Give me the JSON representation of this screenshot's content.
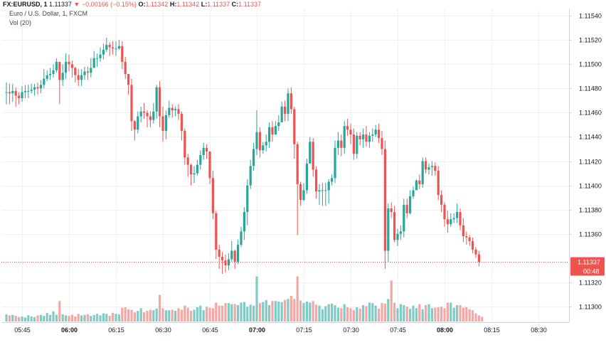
{
  "header": {
    "symbol": "FX:EURUSD, 1",
    "last": "1.11337",
    "arrow": "▼",
    "change": "−0.00166 (−0.15%)",
    "o_label": "O:",
    "o_value": "1.11342",
    "h_label": "H:",
    "h_value": "1.11342",
    "l_label": "L:",
    "l_value": "1.11337",
    "c_label": "C:",
    "c_value": "1.11337",
    "series_title": "Euro / U.S. Dollar, 1, FXCM",
    "volume_label": "Vol (20)"
  },
  "price_tag": {
    "price": "1.11337",
    "countdown": "00:48"
  },
  "colors": {
    "up": "#26a69a",
    "down": "#ef5350",
    "vol_up": "#80cbc4",
    "vol_down": "#f4a7a5",
    "grid": "#eef0f3"
  },
  "chart_data": {
    "type": "candlestick",
    "title": "Euro / U.S. Dollar, 1, FXCM",
    "xlabel": "",
    "ylabel": "",
    "yticks": [
      "1.11540",
      "1.11520",
      "1.11500",
      "1.11480",
      "1.11460",
      "1.11440",
      "1.11420",
      "1.11400",
      "1.11380",
      "1.11360",
      "1.11320",
      "1.11300"
    ],
    "ylim": [
      1.11287,
      1.11546
    ],
    "xticks": [
      "05:45",
      "06:00",
      "06:15",
      "06:30",
      "06:45",
      "07:00",
      "07:15",
      "07:30",
      "07:45",
      "08:00",
      "08:15",
      "08:30"
    ],
    "bold_xticks": [
      "06:00",
      "07:00",
      "08:00"
    ],
    "start_time": "05:40",
    "last_price": 1.11337,
    "closes": [
      1.11477,
      1.11476,
      1.11478,
      1.11474,
      1.11472,
      1.11477,
      1.11478,
      1.11478,
      1.11479,
      1.11481,
      1.1148,
      1.11483,
      1.11488,
      1.11491,
      1.11492,
      1.11495,
      1.11502,
      1.11487,
      1.11493,
      1.11502,
      1.115,
      1.11497,
      1.11491,
      1.11487,
      1.11491,
      1.11494,
      1.11493,
      1.11497,
      1.11505,
      1.11505,
      1.11508,
      1.11512,
      1.11516,
      1.11514,
      1.11513,
      1.11513,
      1.11515,
      1.11502,
      1.11492,
      1.11483,
      1.11453,
      1.11446,
      1.11457,
      1.11461,
      1.1146,
      1.11457,
      1.11454,
      1.11461,
      1.11481,
      1.11457,
      1.11445,
      1.11458,
      1.11464,
      1.11462,
      1.11463,
      1.11459,
      1.11445,
      1.11423,
      1.11417,
      1.11409,
      1.1141,
      1.11417,
      1.11425,
      1.11431,
      1.11428,
      1.11406,
      1.11377,
      1.11347,
      1.11341,
      1.11338,
      1.11334,
      1.11339,
      1.11346,
      1.11337,
      1.11351,
      1.11362,
      1.11378,
      1.114,
      1.11416,
      1.1143,
      1.11444,
      1.11429,
      1.11433,
      1.11436,
      1.11448,
      1.11442,
      1.11449,
      1.11452,
      1.11465,
      1.11459,
      1.11476,
      1.11463,
      1.11434,
      1.11401,
      1.11388,
      1.11396,
      1.11418,
      1.11436,
      1.11413,
      1.11395,
      1.11396,
      1.11396,
      1.11396,
      1.11403,
      1.11406,
      1.11431,
      1.11437,
      1.11431,
      1.11449,
      1.11446,
      1.11442,
      1.11426,
      1.11441,
      1.11438,
      1.11442,
      1.11436,
      1.11441,
      1.11442,
      1.11446,
      1.11439,
      1.1143,
      1.11346,
      1.11381,
      1.11378,
      1.11355,
      1.1136,
      1.11362,
      1.11384,
      1.11377,
      1.11391,
      1.11396,
      1.11404,
      1.11401,
      1.1142,
      1.11413,
      1.11415,
      1.11416,
      1.11412,
      1.11392,
      1.11384,
      1.11372,
      1.11368,
      1.11372,
      1.11373,
      1.11378,
      1.11367,
      1.11358,
      1.11357,
      1.11354,
      1.11347,
      1.11343,
      1.11337
    ],
    "wicks": [
      [
        1.11485,
        1.11467
      ],
      [
        1.11484,
        1.11467
      ],
      [
        1.11484,
        1.11469
      ],
      [
        1.11481,
        1.11465
      ],
      [
        1.11477,
        1.11467
      ],
      [
        1.11482,
        1.11469
      ],
      [
        1.11483,
        1.11472
      ],
      [
        1.11483,
        1.11472
      ],
      [
        1.11484,
        1.11476
      ],
      [
        1.11484,
        1.11474
      ],
      [
        1.11485,
        1.11475
      ],
      [
        1.11487,
        1.11476
      ],
      [
        1.11496,
        1.1148
      ],
      [
        1.11495,
        1.11486
      ],
      [
        1.11497,
        1.11487
      ],
      [
        1.115,
        1.11489
      ],
      [
        1.11505,
        1.11493
      ],
      [
        1.11501,
        1.11467
      ],
      [
        1.115,
        1.11482
      ],
      [
        1.11509,
        1.11488
      ],
      [
        1.11508,
        1.11494
      ],
      [
        1.11503,
        1.11489
      ],
      [
        1.11498,
        1.11485
      ],
      [
        1.11496,
        1.11482
      ],
      [
        1.11496,
        1.11482
      ],
      [
        1.11498,
        1.11487
      ],
      [
        1.11498,
        1.11487
      ],
      [
        1.11505,
        1.11489
      ],
      [
        1.11511,
        1.11498
      ],
      [
        1.11509,
        1.11498
      ],
      [
        1.11514,
        1.11502
      ],
      [
        1.11517,
        1.11504
      ],
      [
        1.11522,
        1.1151
      ],
      [
        1.11518,
        1.11507
      ],
      [
        1.11519,
        1.11508
      ],
      [
        1.11519,
        1.11507
      ],
      [
        1.1152,
        1.11512
      ],
      [
        1.11519,
        1.11496
      ],
      [
        1.11506,
        1.11488
      ],
      [
        1.1149,
        1.11475
      ],
      [
        1.11488,
        1.11445
      ],
      [
        1.11454,
        1.11437
      ],
      [
        1.11461,
        1.11443
      ],
      [
        1.11465,
        1.11452
      ],
      [
        1.11468,
        1.11455
      ],
      [
        1.11462,
        1.11448
      ],
      [
        1.11461,
        1.11448
      ],
      [
        1.11468,
        1.11451
      ],
      [
        1.11483,
        1.11455
      ],
      [
        1.11486,
        1.11448
      ],
      [
        1.11465,
        1.11436
      ],
      [
        1.11462,
        1.11438
      ],
      [
        1.1147,
        1.11456
      ],
      [
        1.11467,
        1.11456
      ],
      [
        1.11465,
        1.11457
      ],
      [
        1.11467,
        1.11454
      ],
      [
        1.11461,
        1.11437
      ],
      [
        1.11447,
        1.11417
      ],
      [
        1.11426,
        1.11407
      ],
      [
        1.11418,
        1.114
      ],
      [
        1.11416,
        1.11402
      ],
      [
        1.11421,
        1.11408
      ],
      [
        1.11429,
        1.11413
      ],
      [
        1.11435,
        1.11421
      ],
      [
        1.11434,
        1.11422
      ],
      [
        1.11428,
        1.11401
      ],
      [
        1.11412,
        1.11372
      ],
      [
        1.11379,
        1.11339
      ],
      [
        1.11351,
        1.11331
      ],
      [
        1.11345,
        1.11327
      ],
      [
        1.11343,
        1.11328
      ],
      [
        1.11344,
        1.1133
      ],
      [
        1.11354,
        1.11337
      ],
      [
        1.11347,
        1.11331
      ],
      [
        1.11355,
        1.11335
      ],
      [
        1.11366,
        1.11349
      ],
      [
        1.11382,
        1.11355
      ],
      [
        1.11405,
        1.11367
      ],
      [
        1.11421,
        1.11397
      ],
      [
        1.11435,
        1.11412
      ],
      [
        1.11462,
        1.11425
      ],
      [
        1.11448,
        1.11423
      ],
      [
        1.11436,
        1.11426
      ],
      [
        1.11442,
        1.11428
      ],
      [
        1.11452,
        1.11431
      ],
      [
        1.11453,
        1.11436
      ],
      [
        1.11453,
        1.11442
      ],
      [
        1.11458,
        1.11445
      ],
      [
        1.11469,
        1.11454
      ],
      [
        1.1147,
        1.11453
      ],
      [
        1.1148,
        1.11453
      ],
      [
        1.11481,
        1.11459
      ],
      [
        1.11465,
        1.11422
      ],
      [
        1.11436,
        1.11359
      ],
      [
        1.11403,
        1.11383
      ],
      [
        1.11402,
        1.11387
      ],
      [
        1.11422,
        1.11393
      ],
      [
        1.1144,
        1.11423
      ],
      [
        1.11439,
        1.11407
      ],
      [
        1.11416,
        1.11389
      ],
      [
        1.11401,
        1.11384
      ],
      [
        1.11402,
        1.11383
      ],
      [
        1.11402,
        1.11383
      ],
      [
        1.11405,
        1.11385
      ],
      [
        1.11409,
        1.114
      ],
      [
        1.11437,
        1.11402
      ],
      [
        1.11444,
        1.11425
      ],
      [
        1.11442,
        1.11424
      ],
      [
        1.11453,
        1.11426
      ],
      [
        1.11455,
        1.11441
      ],
      [
        1.11451,
        1.11434
      ],
      [
        1.11447,
        1.11421
      ],
      [
        1.11444,
        1.11422
      ],
      [
        1.11444,
        1.11433
      ],
      [
        1.11447,
        1.11431
      ],
      [
        1.11449,
        1.11432
      ],
      [
        1.11444,
        1.11431
      ],
      [
        1.11447,
        1.11436
      ],
      [
        1.1145,
        1.1144
      ],
      [
        1.11451,
        1.11435
      ],
      [
        1.11445,
        1.11425
      ],
      [
        1.11437,
        1.11331
      ],
      [
        1.11385,
        1.11337
      ],
      [
        1.11386,
        1.11373
      ],
      [
        1.11383,
        1.11353
      ],
      [
        1.11364,
        1.1135
      ],
      [
        1.11367,
        1.11355
      ],
      [
        1.11389,
        1.11357
      ],
      [
        1.11389,
        1.11373
      ],
      [
        1.11396,
        1.11376
      ],
      [
        1.11399,
        1.11389
      ],
      [
        1.11405,
        1.11397
      ],
      [
        1.11409,
        1.11397
      ],
      [
        1.11423,
        1.11398
      ],
      [
        1.11423,
        1.1141
      ],
      [
        1.11418,
        1.11409
      ],
      [
        1.1142,
        1.11408
      ],
      [
        1.11419,
        1.11408
      ],
      [
        1.11416,
        1.11388
      ],
      [
        1.11396,
        1.11378
      ],
      [
        1.11386,
        1.11366
      ],
      [
        1.11379,
        1.11361
      ],
      [
        1.11377,
        1.11366
      ],
      [
        1.11377,
        1.11369
      ],
      [
        1.11385,
        1.11369
      ],
      [
        1.11381,
        1.11363
      ],
      [
        1.11373,
        1.11353
      ],
      [
        1.11362,
        1.11351
      ],
      [
        1.11359,
        1.1135
      ],
      [
        1.11357,
        1.11344
      ],
      [
        1.11349,
        1.1134
      ],
      [
        1.11346,
        1.11333
      ]
    ],
    "volume": [
      14,
      12,
      13,
      11,
      9,
      10,
      8,
      12,
      10,
      9,
      12,
      13,
      11,
      17,
      13,
      20,
      13,
      40,
      14,
      12,
      11,
      13,
      10,
      15,
      12,
      13,
      14,
      11,
      13,
      15,
      12,
      16,
      15,
      11,
      17,
      15,
      14,
      27,
      28,
      24,
      23,
      18,
      21,
      26,
      18,
      21,
      23,
      22,
      25,
      52,
      26,
      22,
      22,
      23,
      21,
      26,
      23,
      31,
      27,
      21,
      23,
      28,
      31,
      22,
      29,
      27,
      26,
      37,
      31,
      31,
      36,
      36,
      34,
      34,
      32,
      37,
      38,
      29,
      33,
      31,
      88,
      36,
      38,
      42,
      32,
      40,
      40,
      39,
      38,
      42,
      44,
      50,
      44,
      88,
      41,
      36,
      39,
      37,
      40,
      33,
      31,
      24,
      30,
      34,
      35,
      32,
      27,
      26,
      34,
      28,
      26,
      22,
      28,
      25,
      32,
      30,
      37,
      36,
      31,
      25,
      36,
      35,
      44,
      80,
      37,
      26,
      34,
      32,
      29,
      25,
      31,
      26,
      34,
      24,
      32,
      34,
      26,
      27,
      28,
      29,
      26,
      37,
      37,
      27,
      32,
      32,
      27,
      28,
      24,
      22,
      16,
      12,
      9
    ]
  }
}
